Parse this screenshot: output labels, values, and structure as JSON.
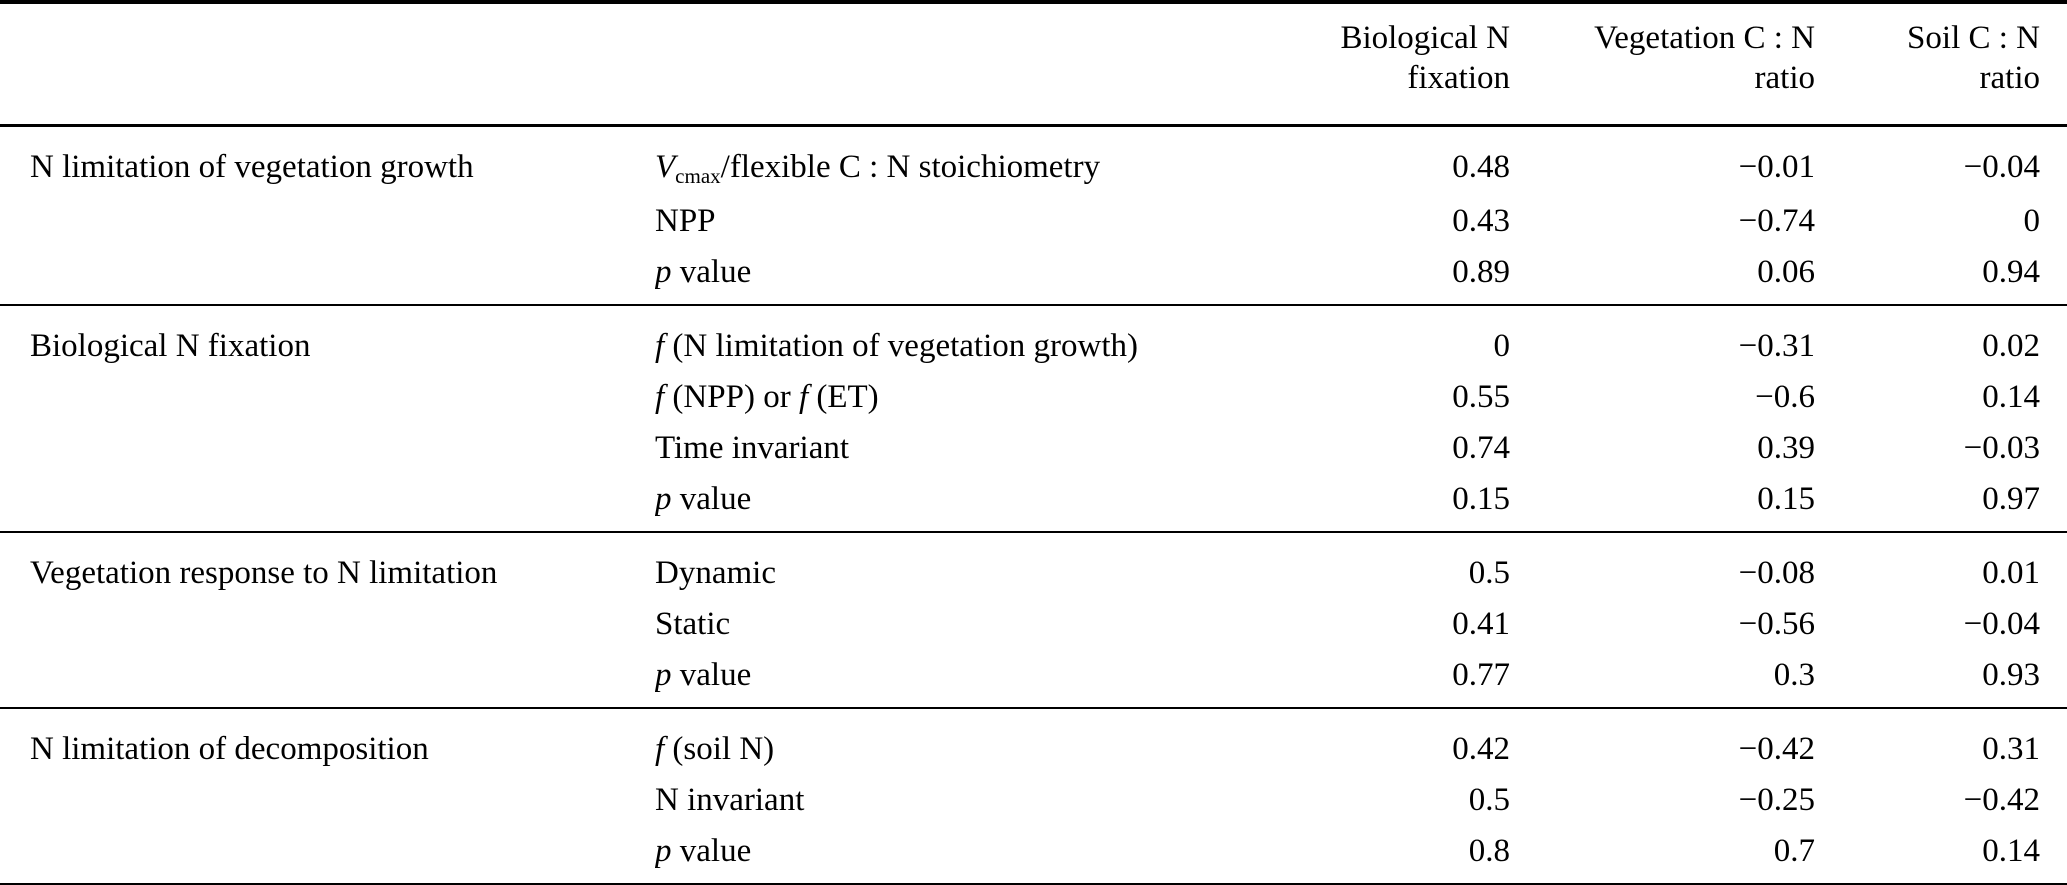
{
  "table": {
    "value_columns": [
      {
        "id": "biological-n-fixation",
        "label_lines": [
          "Biological N",
          "fixation"
        ]
      },
      {
        "id": "vegetation-cn-ratio",
        "label_lines": [
          "Vegetation C : N",
          "ratio"
        ]
      },
      {
        "id": "soil-cn-ratio",
        "label_lines": [
          "Soil C : N",
          "ratio"
        ]
      }
    ],
    "groups": [
      {
        "label": "N limitation of vegetation growth",
        "rows": [
          {
            "label_parts": [
              {
                "t": "V",
                "s": "i"
              },
              {
                "t": "cmax",
                "s": "sub"
              },
              {
                "t": "/flexible C : N stoichiometry",
                "s": "n"
              }
            ],
            "values": [
              "0.48",
              "−0.01",
              "−0.04"
            ]
          },
          {
            "label_parts": [
              {
                "t": "NPP",
                "s": "n"
              }
            ],
            "values": [
              "0.43",
              "−0.74",
              "0"
            ]
          },
          {
            "label_parts": [
              {
                "t": "p",
                "s": "i"
              },
              {
                "t": " value",
                "s": "n"
              }
            ],
            "values": [
              "0.89",
              "0.06",
              "0.94"
            ]
          }
        ]
      },
      {
        "label": "Biological N fixation",
        "rows": [
          {
            "label_parts": [
              {
                "t": "f",
                "s": "i"
              },
              {
                "t": " (N limitation of vegetation growth)",
                "s": "n"
              }
            ],
            "values": [
              "0",
              "−0.31",
              "0.02"
            ]
          },
          {
            "label_parts": [
              {
                "t": "f",
                "s": "i"
              },
              {
                "t": " (NPP) or ",
                "s": "n"
              },
              {
                "t": "f",
                "s": "i"
              },
              {
                "t": " (ET)",
                "s": "n"
              }
            ],
            "values": [
              "0.55",
              "−0.6",
              "0.14"
            ]
          },
          {
            "label_parts": [
              {
                "t": "Time invariant",
                "s": "n"
              }
            ],
            "values": [
              "0.74",
              "0.39",
              "−0.03"
            ]
          },
          {
            "label_parts": [
              {
                "t": "p",
                "s": "i"
              },
              {
                "t": " value",
                "s": "n"
              }
            ],
            "values": [
              "0.15",
              "0.15",
              "0.97"
            ]
          }
        ]
      },
      {
        "label": "Vegetation response to N limitation",
        "rows": [
          {
            "label_parts": [
              {
                "t": "Dynamic",
                "s": "n"
              }
            ],
            "values": [
              "0.5",
              "−0.08",
              "0.01"
            ]
          },
          {
            "label_parts": [
              {
                "t": "Static",
                "s": "n"
              }
            ],
            "values": [
              "0.41",
              "−0.56",
              "−0.04"
            ]
          },
          {
            "label_parts": [
              {
                "t": "p",
                "s": "i"
              },
              {
                "t": " value",
                "s": "n"
              }
            ],
            "values": [
              "0.77",
              "0.3",
              "0.93"
            ]
          }
        ]
      },
      {
        "label": "N limitation of decomposition",
        "rows": [
          {
            "label_parts": [
              {
                "t": "f",
                "s": "i"
              },
              {
                "t": " (soil N)",
                "s": "n"
              }
            ],
            "values": [
              "0.42",
              "−0.42",
              "0.31"
            ]
          },
          {
            "label_parts": [
              {
                "t": "N invariant",
                "s": "n"
              }
            ],
            "values": [
              "0.5",
              "−0.25",
              "−0.42"
            ]
          },
          {
            "label_parts": [
              {
                "t": "p",
                "s": "i"
              },
              {
                "t": " value",
                "s": "n"
              }
            ],
            "values": [
              "0.8",
              "0.7",
              "0.14"
            ]
          }
        ]
      }
    ]
  }
}
